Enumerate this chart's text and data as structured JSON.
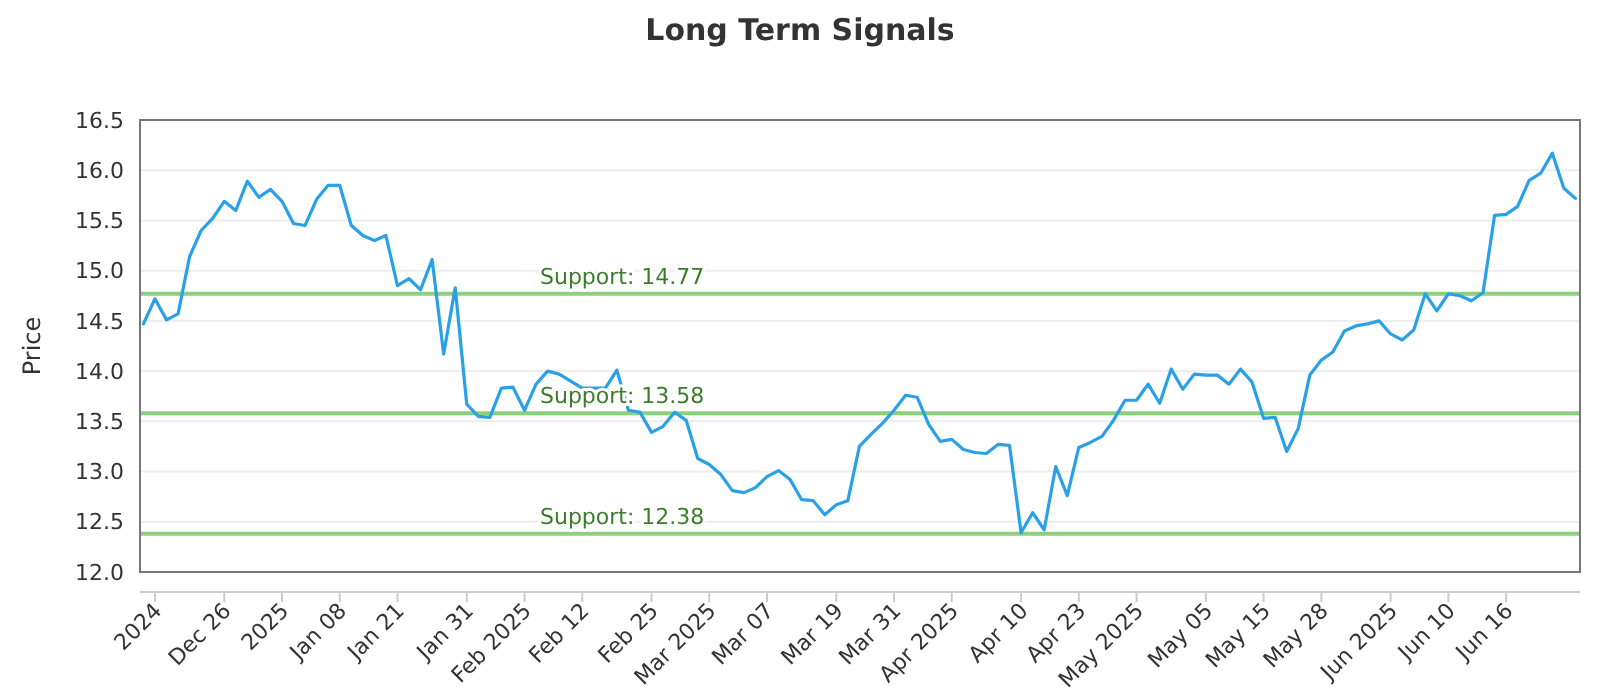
{
  "chart_data": {
    "type": "line",
    "title": "Long Term Signals",
    "ylabel": "Price",
    "categories": [
      null,
      "2024",
      null,
      null,
      null,
      null,
      null,
      "Dec 26",
      null,
      null,
      null,
      null,
      "2025",
      null,
      null,
      null,
      null,
      "Jan 08",
      null,
      null,
      null,
      null,
      "Jan 21",
      null,
      null,
      null,
      null,
      null,
      "Jan 31",
      null,
      null,
      null,
      null,
      "Feb 2025",
      null,
      null,
      null,
      null,
      "Feb 12",
      null,
      null,
      null,
      null,
      null,
      "Feb 25",
      null,
      null,
      null,
      null,
      "Mar 2025",
      null,
      null,
      null,
      null,
      "Mar 07",
      null,
      null,
      null,
      null,
      null,
      "Mar 19",
      null,
      null,
      null,
      null,
      "Mar 31",
      null,
      null,
      null,
      null,
      "Apr 2025",
      null,
      null,
      null,
      null,
      null,
      "Apr 10",
      null,
      null,
      null,
      null,
      "Apr 23",
      null,
      null,
      null,
      null,
      "May 2025",
      null,
      null,
      null,
      null,
      null,
      "May 05",
      null,
      null,
      null,
      null,
      "May 15",
      null,
      null,
      null,
      null,
      "May 28",
      null,
      null,
      null,
      null,
      null,
      "Jun 2025",
      null,
      null,
      null,
      null,
      "Jun 10",
      null,
      null,
      null,
      null,
      "Jun 16",
      null,
      null,
      null,
      null,
      null,
      null
    ],
    "series": [
      {
        "color": "#2aa1e6",
        "values": [
          14.47,
          14.72,
          14.51,
          14.57,
          15.14,
          15.4,
          15.52,
          15.69,
          15.6,
          15.89,
          15.73,
          15.81,
          15.69,
          15.47,
          15.45,
          15.71,
          15.85,
          15.85,
          15.45,
          15.35,
          15.3,
          15.35,
          14.85,
          14.92,
          14.81,
          15.11,
          14.17,
          14.83,
          13.67,
          13.55,
          13.54,
          13.83,
          13.84,
          13.61,
          13.87,
          14.0,
          13.97,
          13.9,
          13.83,
          13.83,
          13.83,
          14.01,
          13.61,
          13.59,
          13.39,
          13.45,
          13.59,
          13.51,
          13.13,
          13.07,
          12.97,
          12.81,
          12.79,
          12.84,
          12.95,
          13.01,
          12.92,
          12.72,
          12.71,
          12.57,
          12.67,
          12.71,
          13.25,
          13.37,
          13.48,
          13.61,
          13.76,
          13.74,
          13.47,
          13.3,
          13.32,
          13.22,
          13.19,
          13.18,
          13.27,
          13.26,
          12.39,
          12.59,
          12.42,
          13.05,
          12.76,
          13.24,
          13.29,
          13.35,
          13.51,
          13.71,
          13.71,
          13.87,
          13.68,
          14.02,
          13.82,
          13.97,
          13.96,
          13.96,
          13.87,
          14.02,
          13.89,
          13.53,
          13.54,
          13.2,
          13.43,
          13.96,
          14.11,
          14.19,
          14.4,
          14.45,
          14.47,
          14.5,
          14.37,
          14.31,
          14.41,
          14.77,
          14.6,
          14.77,
          14.75,
          14.7,
          14.78,
          15.55,
          15.56,
          15.64,
          15.9,
          15.97,
          16.17,
          15.82,
          15.72
        ]
      }
    ],
    "ylim": [
      12,
      16.5
    ],
    "yticks": [
      {
        "value": 12,
        "label": "12.0"
      },
      {
        "value": 12.5,
        "label": "12.5"
      },
      {
        "value": 13,
        "label": "13.0"
      },
      {
        "value": 13.5,
        "label": "13.5"
      },
      {
        "value": 14,
        "label": "14.0"
      },
      {
        "value": 14.5,
        "label": "14.5"
      },
      {
        "value": 15,
        "label": "15.0"
      },
      {
        "value": 15.5,
        "label": "15.5"
      },
      {
        "value": 16,
        "label": "16.0"
      },
      {
        "value": 16.5,
        "label": "16.5"
      }
    ],
    "grid": "y",
    "line_style": "solid",
    "marker": "none",
    "ref_lines": [
      {
        "axis": "y",
        "value": 14.77,
        "label": "Support: 14.77",
        "color": "#8ccf7e"
      },
      {
        "axis": "y",
        "value": 13.58,
        "label": "Support: 13.58",
        "color": "#8ccf7e"
      },
      {
        "axis": "y",
        "value": 12.38,
        "label": "Support: 12.38",
        "color": "#8ccf7e"
      }
    ]
  }
}
